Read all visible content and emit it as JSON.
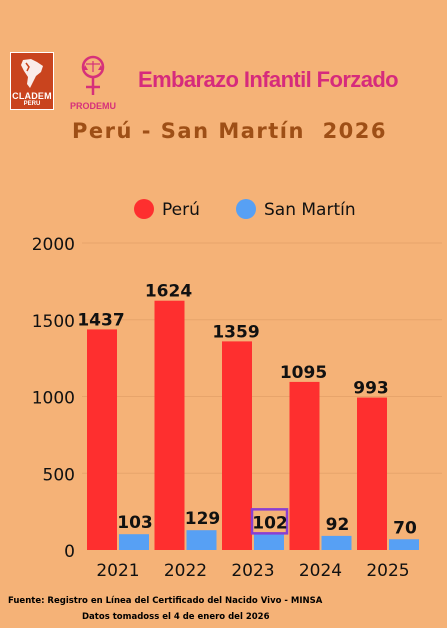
{
  "logos": {
    "cladem_line1": "CLADEM",
    "cladem_line2": "PERU",
    "prodemu": "PRODEMU"
  },
  "header": {
    "title": "Embarazo Infantil Forzado",
    "subtitle": "Perú - San Martín  2026"
  },
  "colors": {
    "background": "#f5b277",
    "peru": "#fe2f2f",
    "san_martin": "#57a0f4",
    "highlight": "#8a3fd1",
    "title": "#d62b7c",
    "subtitle": "#9e4f16"
  },
  "chart_data": {
    "type": "bar",
    "categories": [
      "2021",
      "2022",
      "2023",
      "2024",
      "2025"
    ],
    "series": [
      {
        "name": "Perú",
        "values": [
          1437,
          1624,
          1359,
          1095,
          993
        ]
      },
      {
        "name": "San Martín",
        "values": [
          103,
          129,
          102,
          92,
          70
        ]
      }
    ],
    "ylim": [
      0,
      2000
    ],
    "yticks": [
      "0",
      "500",
      "1000",
      "1500",
      "2000"
    ],
    "legend_position": "top-center",
    "grid": true,
    "highlighted_label": "102"
  },
  "footer": {
    "source": "Fuente:  Registro en Línea del Certificado del Nacido Vivo - MINSA",
    "date_note": "Datos tomadoss el 4 de enero del 2026"
  }
}
